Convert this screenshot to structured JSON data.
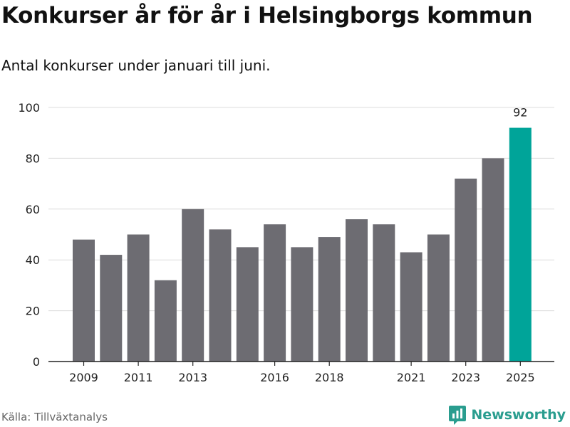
{
  "title": "Konkurser år för år i Helsingborgs kommun",
  "subtitle": "Antal konkurser under januari till juni.",
  "source": "Källa: Tillväxtanalys",
  "brand": "Newsworthy",
  "colors": {
    "bar": "#6d6c72",
    "highlight": "#00a499",
    "grid": "#dcdcdc",
    "axis": "#222222",
    "brand": "#2a9d8f"
  },
  "chart_data": {
    "type": "bar",
    "categories": [
      "2009",
      "2010",
      "2011",
      "2012",
      "2013",
      "2014",
      "2015",
      "2016",
      "2017",
      "2018",
      "2019",
      "2020",
      "2021",
      "2022",
      "2023",
      "2024",
      "2025"
    ],
    "values": [
      48,
      42,
      50,
      32,
      60,
      52,
      45,
      54,
      45,
      49,
      56,
      54,
      43,
      50,
      72,
      80,
      92
    ],
    "x_tick_labels": [
      "2009",
      "2011",
      "2013",
      "2016",
      "2018",
      "2021",
      "2023",
      "2025"
    ],
    "y_ticks": [
      0,
      20,
      40,
      60,
      80,
      100
    ],
    "ylim": [
      0,
      100
    ],
    "highlight_index": 16,
    "data_labels": [
      {
        "index": 16,
        "text": "92"
      }
    ],
    "grid": true
  }
}
